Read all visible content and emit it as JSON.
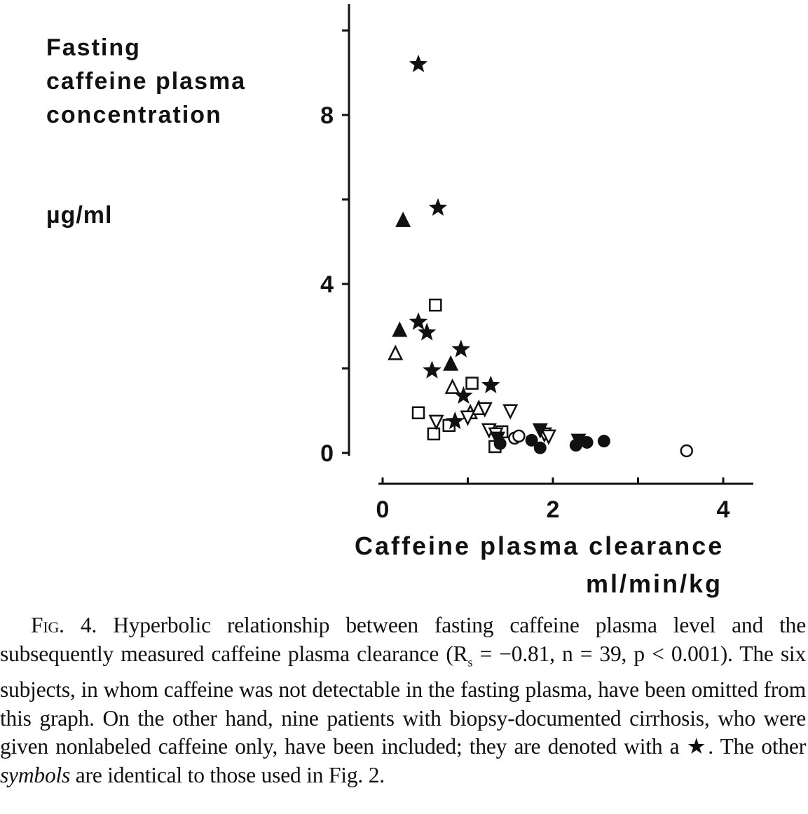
{
  "chart_data": {
    "type": "scatter",
    "ylabel": "Fasting caffeine plasma concentration",
    "yunit": "µg/ml",
    "xlabel": "Caffeine plasma clearance",
    "xunit": "ml/min/kg",
    "xlim": [
      0,
      4.3
    ],
    "ylim": [
      0,
      10.3
    ],
    "xticks": [
      0,
      2,
      4
    ],
    "yticks": [
      0,
      4,
      8
    ],
    "grid": false,
    "series": [
      {
        "marker": "star",
        "points": [
          [
            0.42,
            9.2
          ],
          [
            0.65,
            5.8
          ],
          [
            0.42,
            3.1
          ],
          [
            0.52,
            2.85
          ],
          [
            0.92,
            2.45
          ],
          [
            0.58,
            1.95
          ],
          [
            1.27,
            1.6
          ],
          [
            0.95,
            1.35
          ],
          [
            0.85,
            0.75
          ]
        ]
      },
      {
        "marker": "triangle-filled",
        "points": [
          [
            0.24,
            5.5
          ],
          [
            0.2,
            2.9
          ],
          [
            0.8,
            2.1
          ]
        ]
      },
      {
        "marker": "triangle-open",
        "points": [
          [
            0.15,
            2.35
          ],
          [
            0.82,
            1.55
          ],
          [
            1.03,
            0.95
          ],
          [
            1.13,
            1.05
          ]
        ]
      },
      {
        "marker": "triangle-down-open",
        "points": [
          [
            1.2,
            1.05
          ],
          [
            1.5,
            1.0
          ],
          [
            0.63,
            0.75
          ],
          [
            1.0,
            0.85
          ],
          [
            1.25,
            0.55
          ],
          [
            1.33,
            0.45
          ],
          [
            1.9,
            0.45
          ],
          [
            1.95,
            0.4
          ]
        ]
      },
      {
        "marker": "triangle-down-filled",
        "points": [
          [
            1.85,
            0.55
          ],
          [
            2.3,
            0.3
          ],
          [
            1.35,
            0.35
          ]
        ]
      },
      {
        "marker": "square-open",
        "points": [
          [
            0.62,
            3.5
          ],
          [
            1.05,
            1.65
          ],
          [
            0.42,
            0.95
          ],
          [
            0.78,
            0.65
          ],
          [
            0.6,
            0.45
          ],
          [
            1.32,
            0.15
          ],
          [
            1.4,
            0.5
          ]
        ]
      },
      {
        "marker": "circle-open",
        "points": [
          [
            1.55,
            0.35
          ],
          [
            3.57,
            0.05
          ],
          [
            1.6,
            0.4
          ]
        ]
      },
      {
        "marker": "circle-filled",
        "points": [
          [
            1.75,
            0.3
          ],
          [
            1.85,
            0.12
          ],
          [
            2.27,
            0.18
          ],
          [
            2.6,
            0.28
          ],
          [
            2.4,
            0.25
          ],
          [
            1.38,
            0.22
          ]
        ]
      }
    ]
  },
  "labels": {
    "ylabel_lines": [
      "Fasting",
      "caffeine plasma",
      "concentration"
    ],
    "yunit": "µg/ml",
    "xlabel": "Caffeine plasma clearance",
    "xunit": "ml/min/kg"
  },
  "caption": {
    "fig": "Fig",
    "text1": ". 4. Hyperbolic relationship between fasting caffeine plasma level and the subsequently measured caffeine plasma clearance (R",
    "sub": "s",
    "text2": " = −0.81, n = 39, p < 0.001). The six subjects, in whom caffeine was not detectable in the fasting plasma, have been omitted from this graph. On the other hand, nine patients with biopsy-documented cirrhosis, who were given nonlabeled caffeine only, have been included; they are denoted with a ★. The other ",
    "italic": "symbols",
    "text3": " are identical to those used in Fig. 2."
  }
}
